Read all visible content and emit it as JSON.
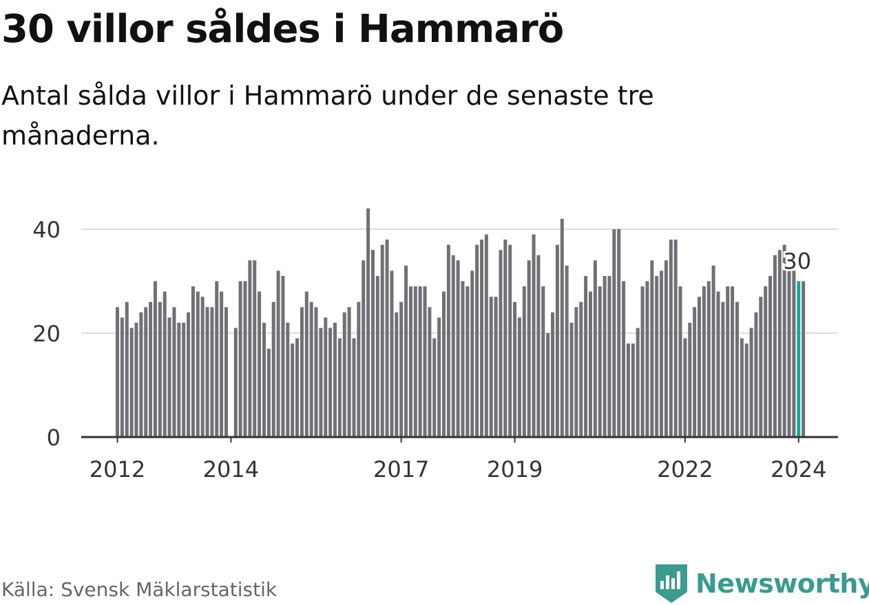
{
  "colors": {
    "bar": "#707075",
    "highlight": "#1aa59b",
    "grid": "#dddddd",
    "axis": "#333333",
    "brand": "#3c9a8f"
  },
  "header": {
    "title": "30 villor såldes i Hammarö",
    "subtitle": "Antal sålda villor i Hammarö under de senaste tre månaderna."
  },
  "chart_data": {
    "type": "bar",
    "title": "30 villor såldes i Hammarö",
    "subtitle": "Antal sålda villor i Hammarö under de senaste tre månaderna.",
    "xlabel": "",
    "ylabel": "",
    "ylim": [
      0,
      44
    ],
    "yticks": [
      0,
      20,
      40
    ],
    "grid": true,
    "start": "2012-01",
    "xtick_labels": [
      {
        "label": "2012",
        "index": 0
      },
      {
        "label": "2014",
        "index": 24
      },
      {
        "label": "2017",
        "index": 60
      },
      {
        "label": "2019",
        "index": 84
      },
      {
        "label": "2022",
        "index": 120
      },
      {
        "label": "2024",
        "index": 144
      }
    ],
    "highlight_index": 144,
    "highlight_label": "30",
    "values": [
      25,
      23,
      26,
      21,
      22,
      24,
      25,
      26,
      30,
      26,
      28,
      23,
      25,
      22,
      22,
      24,
      29,
      28,
      27,
      25,
      25,
      30,
      28,
      25,
      0,
      21,
      30,
      30,
      34,
      34,
      28,
      22,
      17,
      26,
      32,
      31,
      22,
      18,
      19,
      25,
      28,
      26,
      25,
      21,
      23,
      21,
      22,
      19,
      24,
      25,
      19,
      26,
      34,
      44,
      36,
      31,
      37,
      38,
      32,
      24,
      26,
      33,
      29,
      29,
      29,
      29,
      25,
      19,
      23,
      28,
      37,
      35,
      34,
      30,
      29,
      32,
      37,
      38,
      39,
      27,
      27,
      36,
      38,
      37,
      26,
      23,
      29,
      34,
      39,
      35,
      29,
      20,
      24,
      37,
      42,
      33,
      22,
      25,
      26,
      31,
      28,
      34,
      29,
      31,
      31,
      40,
      40,
      30,
      18,
      18,
      21,
      29,
      30,
      34,
      31,
      32,
      34,
      38,
      38,
      29,
      19,
      22,
      25,
      27,
      29,
      30,
      33,
      28,
      26,
      29,
      29,
      26,
      19,
      18,
      21,
      24,
      27,
      29,
      31,
      35,
      36,
      37,
      32,
      32,
      30,
      30
    ]
  },
  "footer": {
    "source": "Källa: Svensk Mäklarstatistik",
    "logo_text": "Newsworthy",
    "logo_icon": "newsworthy-logo-icon"
  }
}
